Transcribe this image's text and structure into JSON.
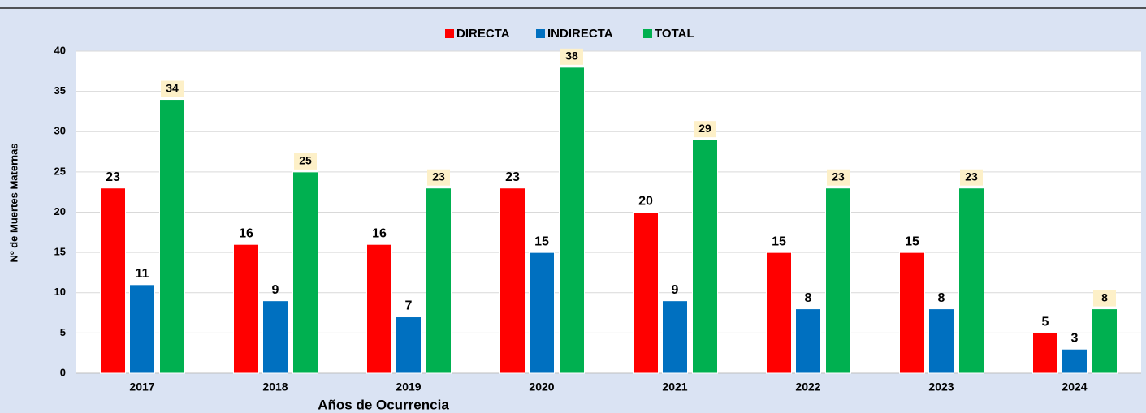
{
  "chart_data": {
    "type": "bar",
    "x_label": "Años de Ocurrencia",
    "y_label": "Nº de Muertes Maternas",
    "categories": [
      "2017",
      "2018",
      "2019",
      "2020",
      "2021",
      "2022",
      "2023",
      "2024"
    ],
    "series": [
      {
        "name": "DIRECTA",
        "color": "#ff0000",
        "values": [
          23,
          16,
          16,
          23,
          20,
          15,
          15,
          5
        ]
      },
      {
        "name": "INDIRECTA",
        "color": "#0070c0",
        "values": [
          11,
          9,
          7,
          15,
          9,
          8,
          8,
          3
        ]
      },
      {
        "name": "TOTAL",
        "color": "#00b050",
        "values": [
          34,
          25,
          23,
          38,
          29,
          23,
          23,
          8
        ]
      }
    ],
    "ylim": [
      0,
      40
    ],
    "yticks": [
      0,
      5,
      10,
      15,
      20,
      25,
      30,
      35,
      40
    ],
    "grid": true,
    "legend": "top"
  }
}
